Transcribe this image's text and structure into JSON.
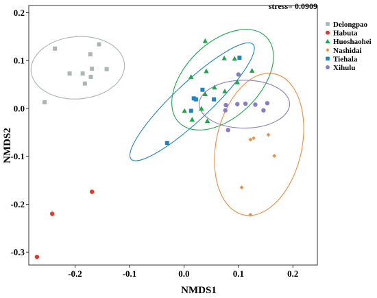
{
  "chart_data": {
    "type": "scatter",
    "title": "",
    "annotation": "stress= 0.0909",
    "xlabel": "NMDS1",
    "ylabel": "NMDS2",
    "xlim": [
      -0.285,
      0.245
    ],
    "ylim": [
      -0.327,
      0.215
    ],
    "x_ticks": [
      -0.2,
      -0.1,
      0.0,
      0.1,
      0.2
    ],
    "x_tick_labels": [
      "-0.2",
      "-0.1",
      "0.0",
      "0.1",
      "0.2"
    ],
    "y_ticks": [
      -0.3,
      -0.2,
      -0.1,
      0.0,
      0.1,
      0.2
    ],
    "y_tick_labels": [
      "-0.3",
      "-0.2",
      "-0.1",
      "0.0",
      "0.1",
      "0.2"
    ],
    "grid": false,
    "legend_position": "right",
    "series": [
      {
        "name": "Delongpao",
        "color": "#A9B6B3",
        "marker": "square",
        "points": [
          [
            -0.237,
            0.125
          ],
          [
            -0.172,
            0.113
          ],
          [
            -0.156,
            0.134
          ],
          [
            -0.21,
            0.073
          ],
          [
            -0.186,
            0.073
          ],
          [
            -0.142,
            0.082
          ],
          [
            -0.169,
            0.083
          ],
          [
            -0.182,
            0.052
          ],
          [
            -0.171,
            0.066
          ],
          [
            -0.256,
            0.013
          ]
        ],
        "ellipse": {
          "cx": -0.195,
          "cy": 0.085,
          "rx": 0.086,
          "ry": 0.065,
          "angle_deg": 5
        }
      },
      {
        "name": "Habuta",
        "color": "#E2392B",
        "marker": "circle",
        "points": [
          [
            -0.169,
            -0.174
          ],
          [
            -0.242,
            -0.22
          ],
          [
            -0.27,
            -0.31
          ]
        ]
      },
      {
        "name": "Huoshaohei",
        "color": "#1CA64A",
        "marker": "triangle",
        "points": [
          [
            0.039,
            0.141
          ],
          [
            0.074,
            0.105
          ],
          [
            0.093,
            0.104
          ],
          [
            0.041,
            0.078
          ],
          [
            0.013,
            0.066
          ],
          [
            0.125,
            0.079
          ],
          [
            0.056,
            0.044
          ],
          [
            0.039,
            0.03
          ],
          [
            0.032,
            0.0
          ],
          [
            0.001,
            -0.005
          ],
          [
            0.015,
            -0.023
          ],
          [
            0.043,
            -0.026
          ],
          [
            0.075,
            0.036
          ],
          [
            0.098,
            0.055
          ]
        ],
        "ellipse": {
          "cx": 0.071,
          "cy": 0.06,
          "rx": 0.12,
          "ry": 0.072,
          "angle_deg": 48
        }
      },
      {
        "name": "Nashidai",
        "color": "#F08A3E",
        "marker": "diamond",
        "points": [
          [
            0.155,
            -0.055
          ],
          [
            0.122,
            -0.065
          ],
          [
            0.128,
            -0.062
          ],
          [
            0.166,
            -0.099
          ],
          [
            0.106,
            -0.165
          ],
          [
            0.122,
            -0.222
          ]
        ],
        "ellipse": {
          "cx": 0.138,
          "cy": -0.075,
          "rx": 0.15,
          "ry": 0.079,
          "angle_deg": 79
        }
      },
      {
        "name": "Tiehala",
        "color": "#1F84C1",
        "marker": "square",
        "points": [
          [
            0.102,
            0.106
          ],
          [
            0.055,
            0.019
          ],
          [
            0.034,
            0.039
          ],
          [
            0.018,
            0.021
          ],
          [
            0.022,
            0.019
          ],
          [
            0.013,
            -0.005
          ],
          [
            -0.031,
            -0.072
          ]
        ],
        "ellipse": {
          "cx": 0.015,
          "cy": 0.014,
          "rx": 0.164,
          "ry": 0.036,
          "angle_deg": 47
        }
      },
      {
        "name": "Xihulu",
        "color": "#8B7BC2",
        "marker": "circle",
        "points": [
          [
            0.1,
            0.071
          ],
          [
            0.077,
            0.007
          ],
          [
            0.098,
            0.009
          ],
          [
            0.113,
            0.01
          ],
          [
            0.131,
            0.008
          ],
          [
            0.153,
            0.011
          ],
          [
            0.076,
            -0.004
          ],
          [
            0.146,
            -0.004
          ],
          [
            0.081,
            -0.045
          ]
        ],
        "ellipse": {
          "cx": 0.111,
          "cy": 0.009,
          "rx": 0.083,
          "ry": 0.05,
          "angle_deg": 0
        }
      }
    ]
  }
}
